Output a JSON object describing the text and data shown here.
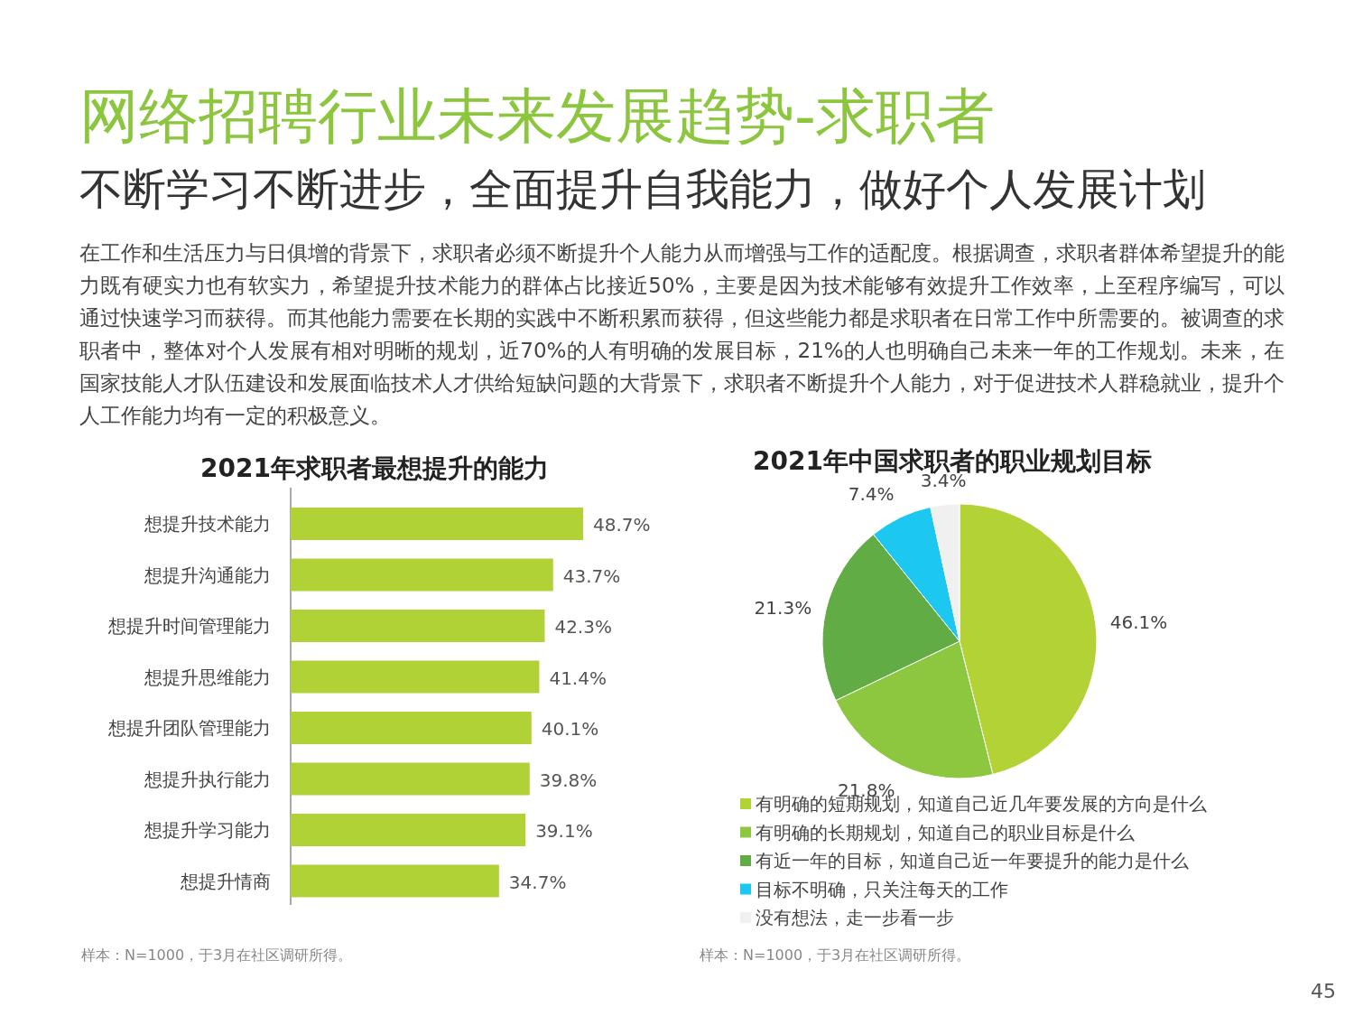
{
  "chart_data": [
    {
      "type": "other",
      "title": "网络招聘行业未来发展趋势-求职者",
      "subtitle": "不断学习不断进步，全面提升自我能力，做好个人发展计划",
      "annotations": [
        "在工作和生活压力与日俱增的背景下，求职者必须不断提升个人能力从而增强与工作的适配度。根据调查，求职者群体希望提升的能力既有硬实力也有软实力，希望提升技术能力的群体占比接近50%，主要是因为技术能够有效提升工作效率，上至程序编写，可以通过快速学习而获得。而其他能力需要在长期的实践中不断积累而获得，但这些能力都是求职者在日常工作中所需要的。被调查的求职者中，整体对个人发展有相对明晰的规划，近70%的人有明确的发展目标，21%的人也明确自己未来一年的工作规划。未来，在国家技能人才队伍建设和发展面临技术人才供给短缺问题的大背景下，求职者不断提升个人能力，对于促进技术人群稳就业，提升个人工作能力均有一定的积极意义。",
        "45"
      ]
    },
    {
      "type": "bar",
      "title": "2021年求职者最想提升的能力",
      "orientation": "horizontal",
      "color": "#b0d236",
      "categories": [
        "想提升技术能力",
        "想提升沟通能力",
        "想提升时间管理能力",
        "想提升思维能力",
        "想提升团队管理能力",
        "想提升执行能力",
        "想提升学习能力",
        "想提升情商"
      ],
      "values": [
        48.7,
        43.7,
        42.3,
        41.4,
        40.1,
        39.8,
        39.1,
        34.7
      ],
      "value_labels": [
        "48.7%",
        "43.7%",
        "42.3%",
        "41.4%",
        "40.1%",
        "39.8%",
        "39.1%",
        "34.7%"
      ],
      "annotations": [
        "样本：N=1000，于3月在社区调研所得。"
      ]
    },
    {
      "type": "pie",
      "title": "2021年中国求职者的职业规划目标",
      "legend": "bottom",
      "categories": [
        "有明确的短期规划，知道自己近几年要发展的方向是什么",
        "有明确的长期规划，知道自己的职业目标是什么",
        "有近一年的目标，知道自己近一年要提升的能力是什么",
        "目标不明确，只关注每天的工作",
        "没有想法，走一步看一步"
      ],
      "values": [
        46.1,
        21.8,
        21.3,
        7.4,
        3.4
      ],
      "value_labels": [
        "46.1%",
        "21.8%",
        "21.3%",
        "7.4%",
        "3.4%"
      ],
      "colors": [
        "#b2d235",
        "#8dc63f",
        "#62ac46",
        "#1cc7f0",
        "#f0f0f0"
      ],
      "annotations": [
        "样本：N=1000，于3月在社区调研所得。"
      ]
    }
  ]
}
